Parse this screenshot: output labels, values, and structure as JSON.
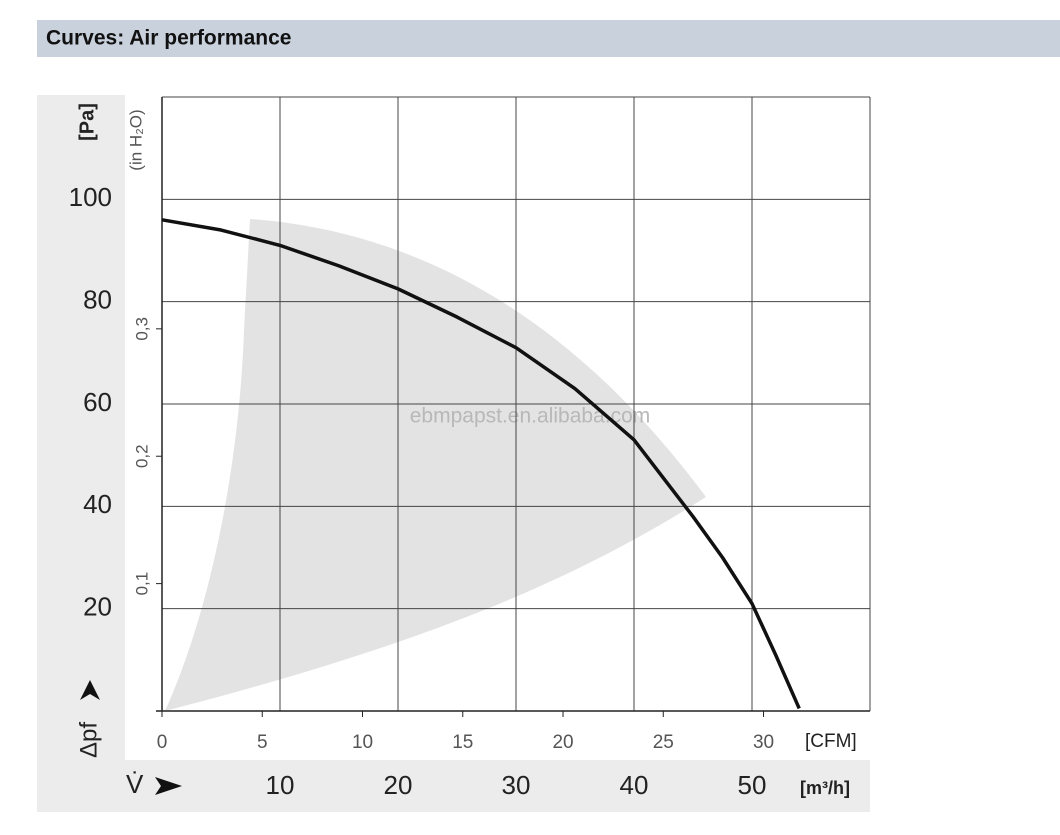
{
  "chart_data": {
    "type": "line",
    "title": "Curves: Air performance",
    "y_label": "[Pa]",
    "y2_label": "(in H₂O)",
    "y_symbol": "Δpf",
    "x_label": "[m³/h]",
    "x2_label": "[CFM]",
    "x_symbol": "V̇",
    "watermark": "ebmpapst.en.alibaba.com",
    "x": [
      0,
      5,
      10,
      15,
      20,
      25,
      30,
      35,
      40,
      45,
      47.5,
      50,
      52,
      54
    ],
    "values": [
      96,
      94,
      91,
      87,
      82.5,
      77,
      71,
      63,
      53,
      38,
      30,
      21,
      11,
      0.5
    ],
    "color": "#111111",
    "xlim": [
      0,
      60
    ],
    "xticks": [
      10,
      20,
      30,
      40,
      50
    ],
    "xgrid": [
      10,
      20,
      30,
      40,
      50,
      60
    ],
    "x2lim": [
      0,
      35.31
    ],
    "x2ticks": [
      0,
      5,
      10,
      15,
      20,
      25,
      30
    ],
    "ylim": [
      0,
      120
    ],
    "yticks": [
      20,
      40,
      60,
      80,
      100
    ],
    "ygrid": [
      20,
      40,
      60,
      80,
      100,
      120
    ],
    "y2lim": [
      0,
      0.482
    ],
    "y2ticks": [
      {
        "value": 0.1,
        "label": "0,1"
      },
      {
        "value": 0.2,
        "label": "0,2"
      },
      {
        "value": 0.3,
        "label": "0,3"
      }
    ],
    "grid": true
  }
}
